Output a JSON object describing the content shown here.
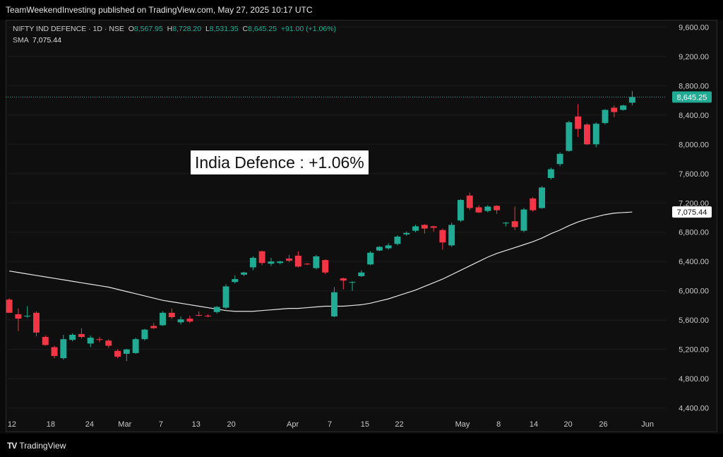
{
  "header": {
    "publish_line": "TeamWeekendInvesting published on TradingView.com, May 27, 2025 10:17 UTC"
  },
  "legend": {
    "symbol": "NIFTY IND DEFENCE · 1D · NSE",
    "o_label": "O",
    "o": "8,567.95",
    "h_label": "H",
    "h": "8,728.20",
    "l_label": "L",
    "l": "8,531.35",
    "c_label": "C",
    "c": "8,645.25",
    "change": "+91.00 (+1.06%)",
    "sma_label": "SMA",
    "sma": "7,075.44"
  },
  "annotation": "India Defence : +1.06%",
  "footer": {
    "brand": "TradingView",
    "logo": "tradingview-logo-icon"
  },
  "colors": {
    "up": "#22ab94",
    "down": "#f23645",
    "sma": "#e6e6e6",
    "grid": "#1c1c1c",
    "axis_text": "#c9c9c9"
  },
  "chart_data": {
    "type": "candlestick",
    "y_axis": {
      "ylim": [
        4300,
        9700
      ],
      "ticks": [
        4400,
        4800,
        5200,
        5600,
        6000,
        6400,
        6800,
        7200,
        7600,
        8000,
        8400,
        8800,
        9200,
        9600
      ],
      "tick_labels": [
        "4,400.00",
        "4,800.00",
        "5,200.00",
        "5,600.00",
        "6,000.00",
        "6,400.00",
        "6,800.00",
        "7,200.00",
        "7,600.00",
        "8,000.00",
        "8,400.00",
        "8,800.00",
        "9,200.00",
        "9,600.00"
      ]
    },
    "x_axis": {
      "labels": [
        {
          "text": "12",
          "i": 0.3
        },
        {
          "text": "18",
          "i": 4.6
        },
        {
          "text": "24",
          "i": 8.9
        },
        {
          "text": "Mar",
          "i": 12.8
        },
        {
          "text": "7",
          "i": 16.8
        },
        {
          "text": "13",
          "i": 20.7
        },
        {
          "text": "20",
          "i": 24.6
        },
        {
          "text": "Apr",
          "i": 31.4
        },
        {
          "text": "7",
          "i": 35.5
        },
        {
          "text": "15",
          "i": 39.4
        },
        {
          "text": "22",
          "i": 43.2
        },
        {
          "text": "May",
          "i": 50.2
        },
        {
          "text": "8",
          "i": 54.2
        },
        {
          "text": "14",
          "i": 58.1
        },
        {
          "text": "20",
          "i": 61.9
        },
        {
          "text": "26",
          "i": 65.8
        },
        {
          "text": "Jun",
          "i": 70.7
        }
      ],
      "ilim": [
        -0.4,
        72.8
      ]
    },
    "last_price": {
      "value": 8645.25,
      "label": "8,645.25"
    },
    "sma_last": {
      "value": 7075.44,
      "label": "7,075.44"
    },
    "candles": [
      {
        "o": 5880,
        "h": 5900,
        "l": 5700,
        "c": 5700
      },
      {
        "o": 5680,
        "h": 5760,
        "l": 5450,
        "c": 5620
      },
      {
        "o": 5650,
        "h": 5790,
        "l": 5630,
        "c": 5660
      },
      {
        "o": 5700,
        "h": 5720,
        "l": 5380,
        "c": 5430
      },
      {
        "o": 5370,
        "h": 5390,
        "l": 5250,
        "c": 5260
      },
      {
        "o": 5230,
        "h": 5250,
        "l": 5080,
        "c": 5110
      },
      {
        "o": 5080,
        "h": 5400,
        "l": 5060,
        "c": 5340
      },
      {
        "o": 5330,
        "h": 5420,
        "l": 5310,
        "c": 5400
      },
      {
        "o": 5410,
        "h": 5490,
        "l": 5350,
        "c": 5370
      },
      {
        "o": 5280,
        "h": 5390,
        "l": 5230,
        "c": 5360
      },
      {
        "o": 5340,
        "h": 5370,
        "l": 5300,
        "c": 5330
      },
      {
        "o": 5320,
        "h": 5340,
        "l": 5220,
        "c": 5250
      },
      {
        "o": 5180,
        "h": 5200,
        "l": 5080,
        "c": 5100
      },
      {
        "o": 5140,
        "h": 5210,
        "l": 5040,
        "c": 5200
      },
      {
        "o": 5150,
        "h": 5360,
        "l": 5140,
        "c": 5340
      },
      {
        "o": 5340,
        "h": 5480,
        "l": 5320,
        "c": 5470
      },
      {
        "o": 5520,
        "h": 5560,
        "l": 5480,
        "c": 5490
      },
      {
        "o": 5530,
        "h": 5720,
        "l": 5520,
        "c": 5700
      },
      {
        "o": 5700,
        "h": 5760,
        "l": 5620,
        "c": 5640
      },
      {
        "o": 5570,
        "h": 5650,
        "l": 5540,
        "c": 5610
      },
      {
        "o": 5620,
        "h": 5660,
        "l": 5560,
        "c": 5580
      },
      {
        "o": 5670,
        "h": 5720,
        "l": 5650,
        "c": 5660
      },
      {
        "o": 5660,
        "h": 5680,
        "l": 5640,
        "c": 5650
      },
      {
        "o": 5710,
        "h": 5790,
        "l": 5690,
        "c": 5780
      },
      {
        "o": 5770,
        "h": 6090,
        "l": 5750,
        "c": 6060
      },
      {
        "o": 6120,
        "h": 6210,
        "l": 6100,
        "c": 6160
      },
      {
        "o": 6220,
        "h": 6260,
        "l": 6200,
        "c": 6250
      },
      {
        "o": 6320,
        "h": 6470,
        "l": 6280,
        "c": 6450
      },
      {
        "o": 6540,
        "h": 6550,
        "l": 6350,
        "c": 6380
      },
      {
        "o": 6370,
        "h": 6450,
        "l": 6340,
        "c": 6400
      },
      {
        "o": 6380,
        "h": 6410,
        "l": 6360,
        "c": 6400
      },
      {
        "o": 6440,
        "h": 6490,
        "l": 6390,
        "c": 6410
      },
      {
        "o": 6480,
        "h": 6540,
        "l": 6320,
        "c": 6330
      },
      {
        "o": 6370,
        "h": 6380,
        "l": 6350,
        "c": 6360
      },
      {
        "o": 6310,
        "h": 6490,
        "l": 6290,
        "c": 6470
      },
      {
        "o": 6420,
        "h": 6430,
        "l": 6230,
        "c": 6250
      },
      {
        "o": 5650,
        "h": 6050,
        "l": 5640,
        "c": 5980
      },
      {
        "o": 6170,
        "h": 6180,
        "l": 6020,
        "c": 6140
      },
      {
        "o": 6120,
        "h": 6130,
        "l": 6000,
        "c": 6120
      },
      {
        "o": 6200,
        "h": 6280,
        "l": 6190,
        "c": 6250
      },
      {
        "o": 6360,
        "h": 6540,
        "l": 6350,
        "c": 6520
      },
      {
        "o": 6550,
        "h": 6610,
        "l": 6540,
        "c": 6600
      },
      {
        "o": 6580,
        "h": 6650,
        "l": 6560,
        "c": 6620
      },
      {
        "o": 6640,
        "h": 6760,
        "l": 6620,
        "c": 6740
      },
      {
        "o": 6770,
        "h": 6810,
        "l": 6750,
        "c": 6790
      },
      {
        "o": 6820,
        "h": 6900,
        "l": 6800,
        "c": 6880
      },
      {
        "o": 6900,
        "h": 6910,
        "l": 6780,
        "c": 6850
      },
      {
        "o": 6880,
        "h": 6890,
        "l": 6810,
        "c": 6860
      },
      {
        "o": 6830,
        "h": 6850,
        "l": 6560,
        "c": 6660
      },
      {
        "o": 6620,
        "h": 6930,
        "l": 6600,
        "c": 6900
      },
      {
        "o": 6960,
        "h": 7250,
        "l": 6940,
        "c": 7240
      },
      {
        "o": 7300,
        "h": 7340,
        "l": 7100,
        "c": 7130
      },
      {
        "o": 7140,
        "h": 7170,
        "l": 7060,
        "c": 7070
      },
      {
        "o": 7090,
        "h": 7170,
        "l": 7070,
        "c": 7150
      },
      {
        "o": 7160,
        "h": 7170,
        "l": 7050,
        "c": 7100
      },
      {
        "o": 6920,
        "h": 6940,
        "l": 6880,
        "c": 6930
      },
      {
        "o": 6950,
        "h": 7150,
        "l": 6830,
        "c": 6870
      },
      {
        "o": 6820,
        "h": 7130,
        "l": 6800,
        "c": 7110
      },
      {
        "o": 7260,
        "h": 7280,
        "l": 7080,
        "c": 7100
      },
      {
        "o": 7130,
        "h": 7430,
        "l": 7120,
        "c": 7410
      },
      {
        "o": 7540,
        "h": 7680,
        "l": 7520,
        "c": 7660
      },
      {
        "o": 7730,
        "h": 7890,
        "l": 7700,
        "c": 7870
      },
      {
        "o": 7910,
        "h": 8320,
        "l": 7900,
        "c": 8300
      },
      {
        "o": 8380,
        "h": 8550,
        "l": 8100,
        "c": 8210
      },
      {
        "o": 8270,
        "h": 8290,
        "l": 7990,
        "c": 8000
      },
      {
        "o": 8000,
        "h": 8300,
        "l": 7960,
        "c": 8280
      },
      {
        "o": 8290,
        "h": 8480,
        "l": 8270,
        "c": 8470
      },
      {
        "o": 8500,
        "h": 8530,
        "l": 8370,
        "c": 8440
      },
      {
        "o": 8470,
        "h": 8540,
        "l": 8460,
        "c": 8530
      },
      {
        "o": 8567.95,
        "h": 8728.2,
        "l": 8531.35,
        "c": 8645.25
      }
    ],
    "sma": [
      6270,
      6250,
      6230,
      6210,
      6190,
      6170,
      6150,
      6130,
      6110,
      6090,
      6070,
      6050,
      6020,
      5990,
      5960,
      5930,
      5900,
      5870,
      5850,
      5830,
      5810,
      5790,
      5770,
      5750,
      5730,
      5720,
      5720,
      5720,
      5730,
      5740,
      5750,
      5760,
      5760,
      5770,
      5780,
      5790,
      5790,
      5790,
      5800,
      5810,
      5830,
      5860,
      5890,
      5930,
      5970,
      6010,
      6060,
      6110,
      6160,
      6220,
      6280,
      6340,
      6400,
      6460,
      6510,
      6550,
      6590,
      6630,
      6670,
      6720,
      6780,
      6830,
      6890,
      6940,
      6980,
      7010,
      7040,
      7060,
      7068,
      7075.44
    ]
  }
}
